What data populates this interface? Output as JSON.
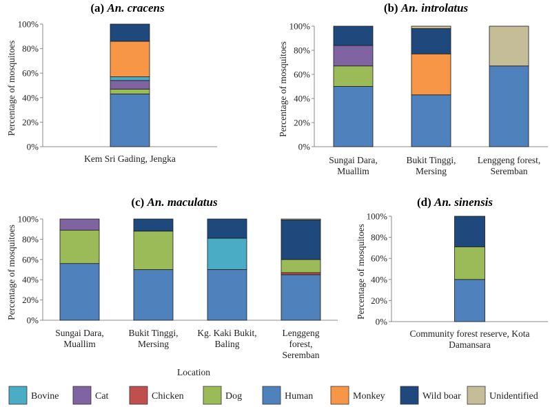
{
  "colors": {
    "Bovine": "#4bacc6",
    "Cat": "#8064a2",
    "Chicken": "#c0504d",
    "Dog": "#9bbb59",
    "Human": "#4f81bd",
    "Monkey": "#f79646",
    "Wild boar": "#1f497d",
    "Unidentified": "#c4bd97"
  },
  "legend": [
    "Bovine",
    "Cat",
    "Chicken",
    "Dog",
    "Human",
    "Monkey",
    "Wild boar",
    "Unidentified"
  ],
  "shared_xlabel": "Location",
  "chart_data": [
    {
      "type": "bar",
      "stacked": true,
      "title_prefix": "(a)",
      "title_species": "An. cracens",
      "ylabel": "Percentage of mosquitoes",
      "ylim": [
        0,
        100
      ],
      "yticks": [
        "0%",
        "20%",
        "40%",
        "60%",
        "80%",
        "100%"
      ],
      "categories": [
        [
          "Kem Sri Gading, Jengka"
        ]
      ],
      "series": [
        {
          "name": "Human",
          "values": [
            43
          ]
        },
        {
          "name": "Dog",
          "values": [
            4
          ]
        },
        {
          "name": "Cat",
          "values": [
            7
          ]
        },
        {
          "name": "Bovine",
          "values": [
            3
          ]
        },
        {
          "name": "Monkey",
          "values": [
            29
          ]
        },
        {
          "name": "Wild boar",
          "values": [
            14
          ]
        }
      ]
    },
    {
      "type": "bar",
      "stacked": true,
      "title_prefix": "(b)",
      "title_species": "An. introlatus",
      "ylabel": "Percentage of mosquitoes",
      "ylim": [
        0,
        100
      ],
      "yticks": [
        "0%",
        "20%",
        "40%",
        "60%",
        "80%",
        "100%"
      ],
      "categories": [
        [
          "Sungai Dara,",
          "Muallim"
        ],
        [
          "Bukit Tinggi,",
          "Mersing"
        ],
        [
          "Lenggeng forest,",
          "Seremban"
        ]
      ],
      "series": [
        {
          "name": "Human",
          "values": [
            50,
            43,
            67
          ]
        },
        {
          "name": "Dog",
          "values": [
            17,
            0,
            0
          ]
        },
        {
          "name": "Cat",
          "values": [
            17,
            0,
            0
          ]
        },
        {
          "name": "Monkey",
          "values": [
            0,
            34,
            0
          ]
        },
        {
          "name": "Wild boar",
          "values": [
            16,
            21,
            0
          ]
        },
        {
          "name": "Unidentified",
          "values": [
            0,
            2,
            33
          ]
        }
      ]
    },
    {
      "type": "bar",
      "stacked": true,
      "title_prefix": "(c)",
      "title_species": "An. maculatus",
      "ylabel": "Percentage of mosquitoes",
      "ylim": [
        0,
        100
      ],
      "yticks": [
        "0%",
        "20%",
        "40%",
        "60%",
        "80%",
        "100%"
      ],
      "categories": [
        [
          "Sungai Dara,",
          "Muallim"
        ],
        [
          "Bukit Tinggi,",
          "Mersing"
        ],
        [
          "Kg. Kaki Bukit,",
          "Baling"
        ],
        [
          "Lenggeng",
          "forest,",
          "Seremban"
        ]
      ],
      "series": [
        {
          "name": "Human",
          "values": [
            56,
            50,
            50,
            45
          ]
        },
        {
          "name": "Chicken",
          "values": [
            0,
            0,
            0,
            2
          ]
        },
        {
          "name": "Dog",
          "values": [
            33,
            38,
            0,
            13
          ]
        },
        {
          "name": "Bovine",
          "values": [
            0,
            0,
            31,
            0
          ]
        },
        {
          "name": "Cat",
          "values": [
            11,
            0,
            0,
            0
          ]
        },
        {
          "name": "Wild boar",
          "values": [
            0,
            12,
            19,
            39
          ]
        },
        {
          "name": "Unidentified",
          "values": [
            0,
            0,
            0,
            1
          ]
        }
      ]
    },
    {
      "type": "bar",
      "stacked": true,
      "title_prefix": "(d)",
      "title_species": "An. sinensis",
      "ylabel": "Percentage of mosquitoes",
      "ylim": [
        0,
        100
      ],
      "yticks": [
        "0%",
        "20%",
        "40%",
        "60%",
        "80%",
        "100%"
      ],
      "categories": [
        [
          "Community forest reserve, Kota",
          "Damansara"
        ]
      ],
      "series": [
        {
          "name": "Human",
          "values": [
            40
          ]
        },
        {
          "name": "Dog",
          "values": [
            31
          ]
        },
        {
          "name": "Wild boar",
          "values": [
            29
          ]
        }
      ]
    }
  ]
}
